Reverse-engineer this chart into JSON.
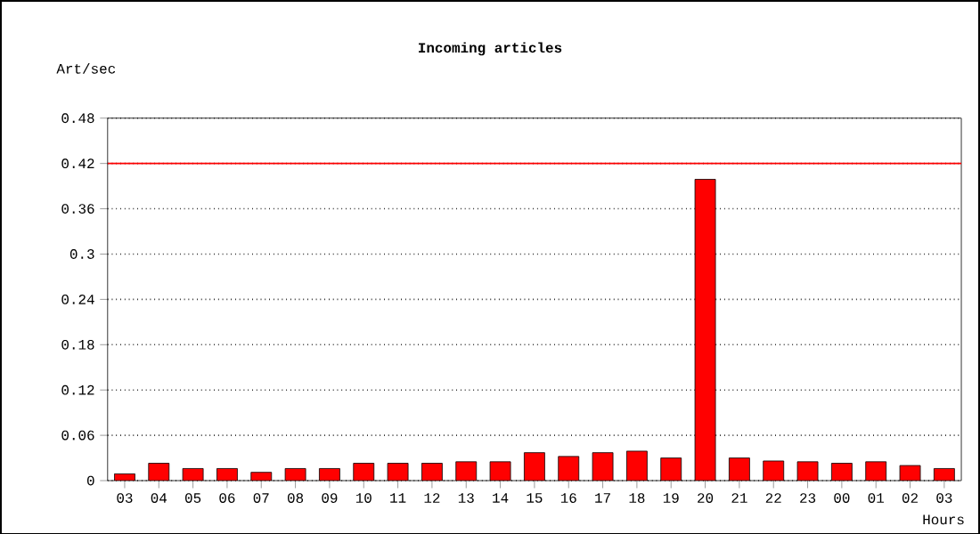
{
  "chart_data": {
    "type": "bar",
    "title": "Incoming articles",
    "ylabel": "Art/sec",
    "xlabel": "Hours",
    "categories": [
      "03",
      "04",
      "05",
      "06",
      "07",
      "08",
      "09",
      "10",
      "11",
      "12",
      "13",
      "14",
      "15",
      "16",
      "17",
      "18",
      "19",
      "20",
      "21",
      "22",
      "23",
      "00",
      "01",
      "02",
      "03"
    ],
    "values": [
      0.009,
      0.023,
      0.016,
      0.016,
      0.011,
      0.016,
      0.016,
      0.023,
      0.023,
      0.023,
      0.025,
      0.025,
      0.037,
      0.032,
      0.037,
      0.039,
      0.03,
      0.399,
      0.03,
      0.026,
      0.025,
      0.023,
      0.025,
      0.02,
      0.016
    ],
    "color": "#ff0000",
    "ylim": [
      0,
      0.48
    ],
    "yticks": [
      0,
      0.06,
      0.12,
      0.18,
      0.24,
      0.3,
      0.36,
      0.42,
      0.48
    ],
    "grid": "y",
    "ref_lines": [
      {
        "axis": "y",
        "value": 0.42,
        "color": "#ff0000"
      }
    ]
  }
}
